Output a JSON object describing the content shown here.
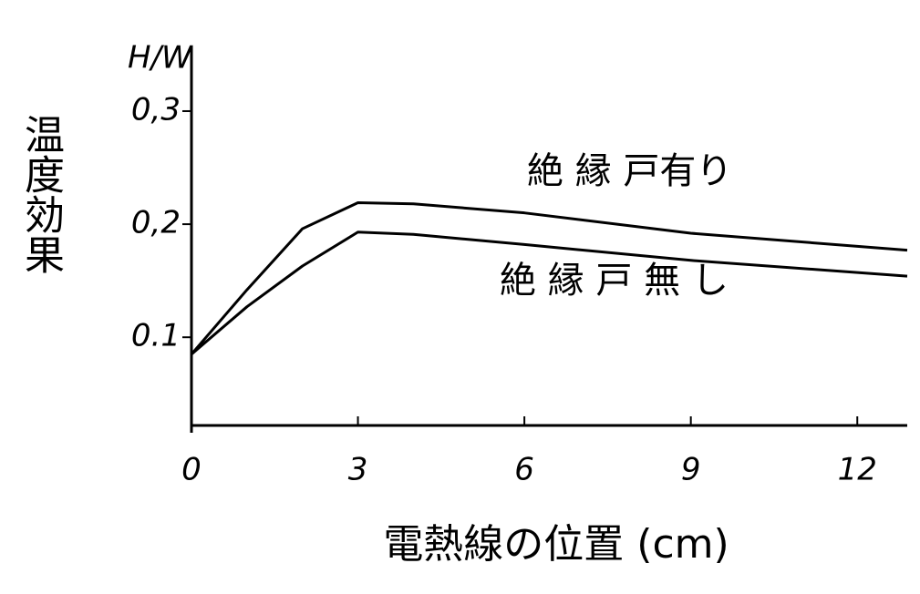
{
  "chart_data": {
    "type": "line",
    "y_label": "温度効果",
    "y_unit": "H/W",
    "x_label": "電熱線の位置 (cm)",
    "x": [
      0,
      1,
      2,
      3,
      4,
      6,
      9,
      12.9
    ],
    "series": [
      {
        "name": "絶 縁 戸有り",
        "color": "#000000",
        "values": [
          0.085,
          0.142,
          0.196,
          0.219,
          0.218,
          0.21,
          0.192,
          0.177
        ]
      },
      {
        "name": "絶 縁 戸 無 し",
        "color": "#000000",
        "values": [
          0.085,
          0.127,
          0.163,
          0.193,
          0.191,
          0.182,
          0.168,
          0.154
        ]
      }
    ],
    "xlim": [
      0,
      12.9
    ],
    "ylim": [
      0.022,
      0.358
    ],
    "xticks": [
      0,
      3,
      6,
      9,
      12
    ],
    "yticks": [
      {
        "value": 0.1,
        "label": "0.1"
      },
      {
        "value": 0.2,
        "label": "0,2"
      },
      {
        "value": 0.3,
        "label": "0,3"
      }
    ],
    "grid": false
  }
}
